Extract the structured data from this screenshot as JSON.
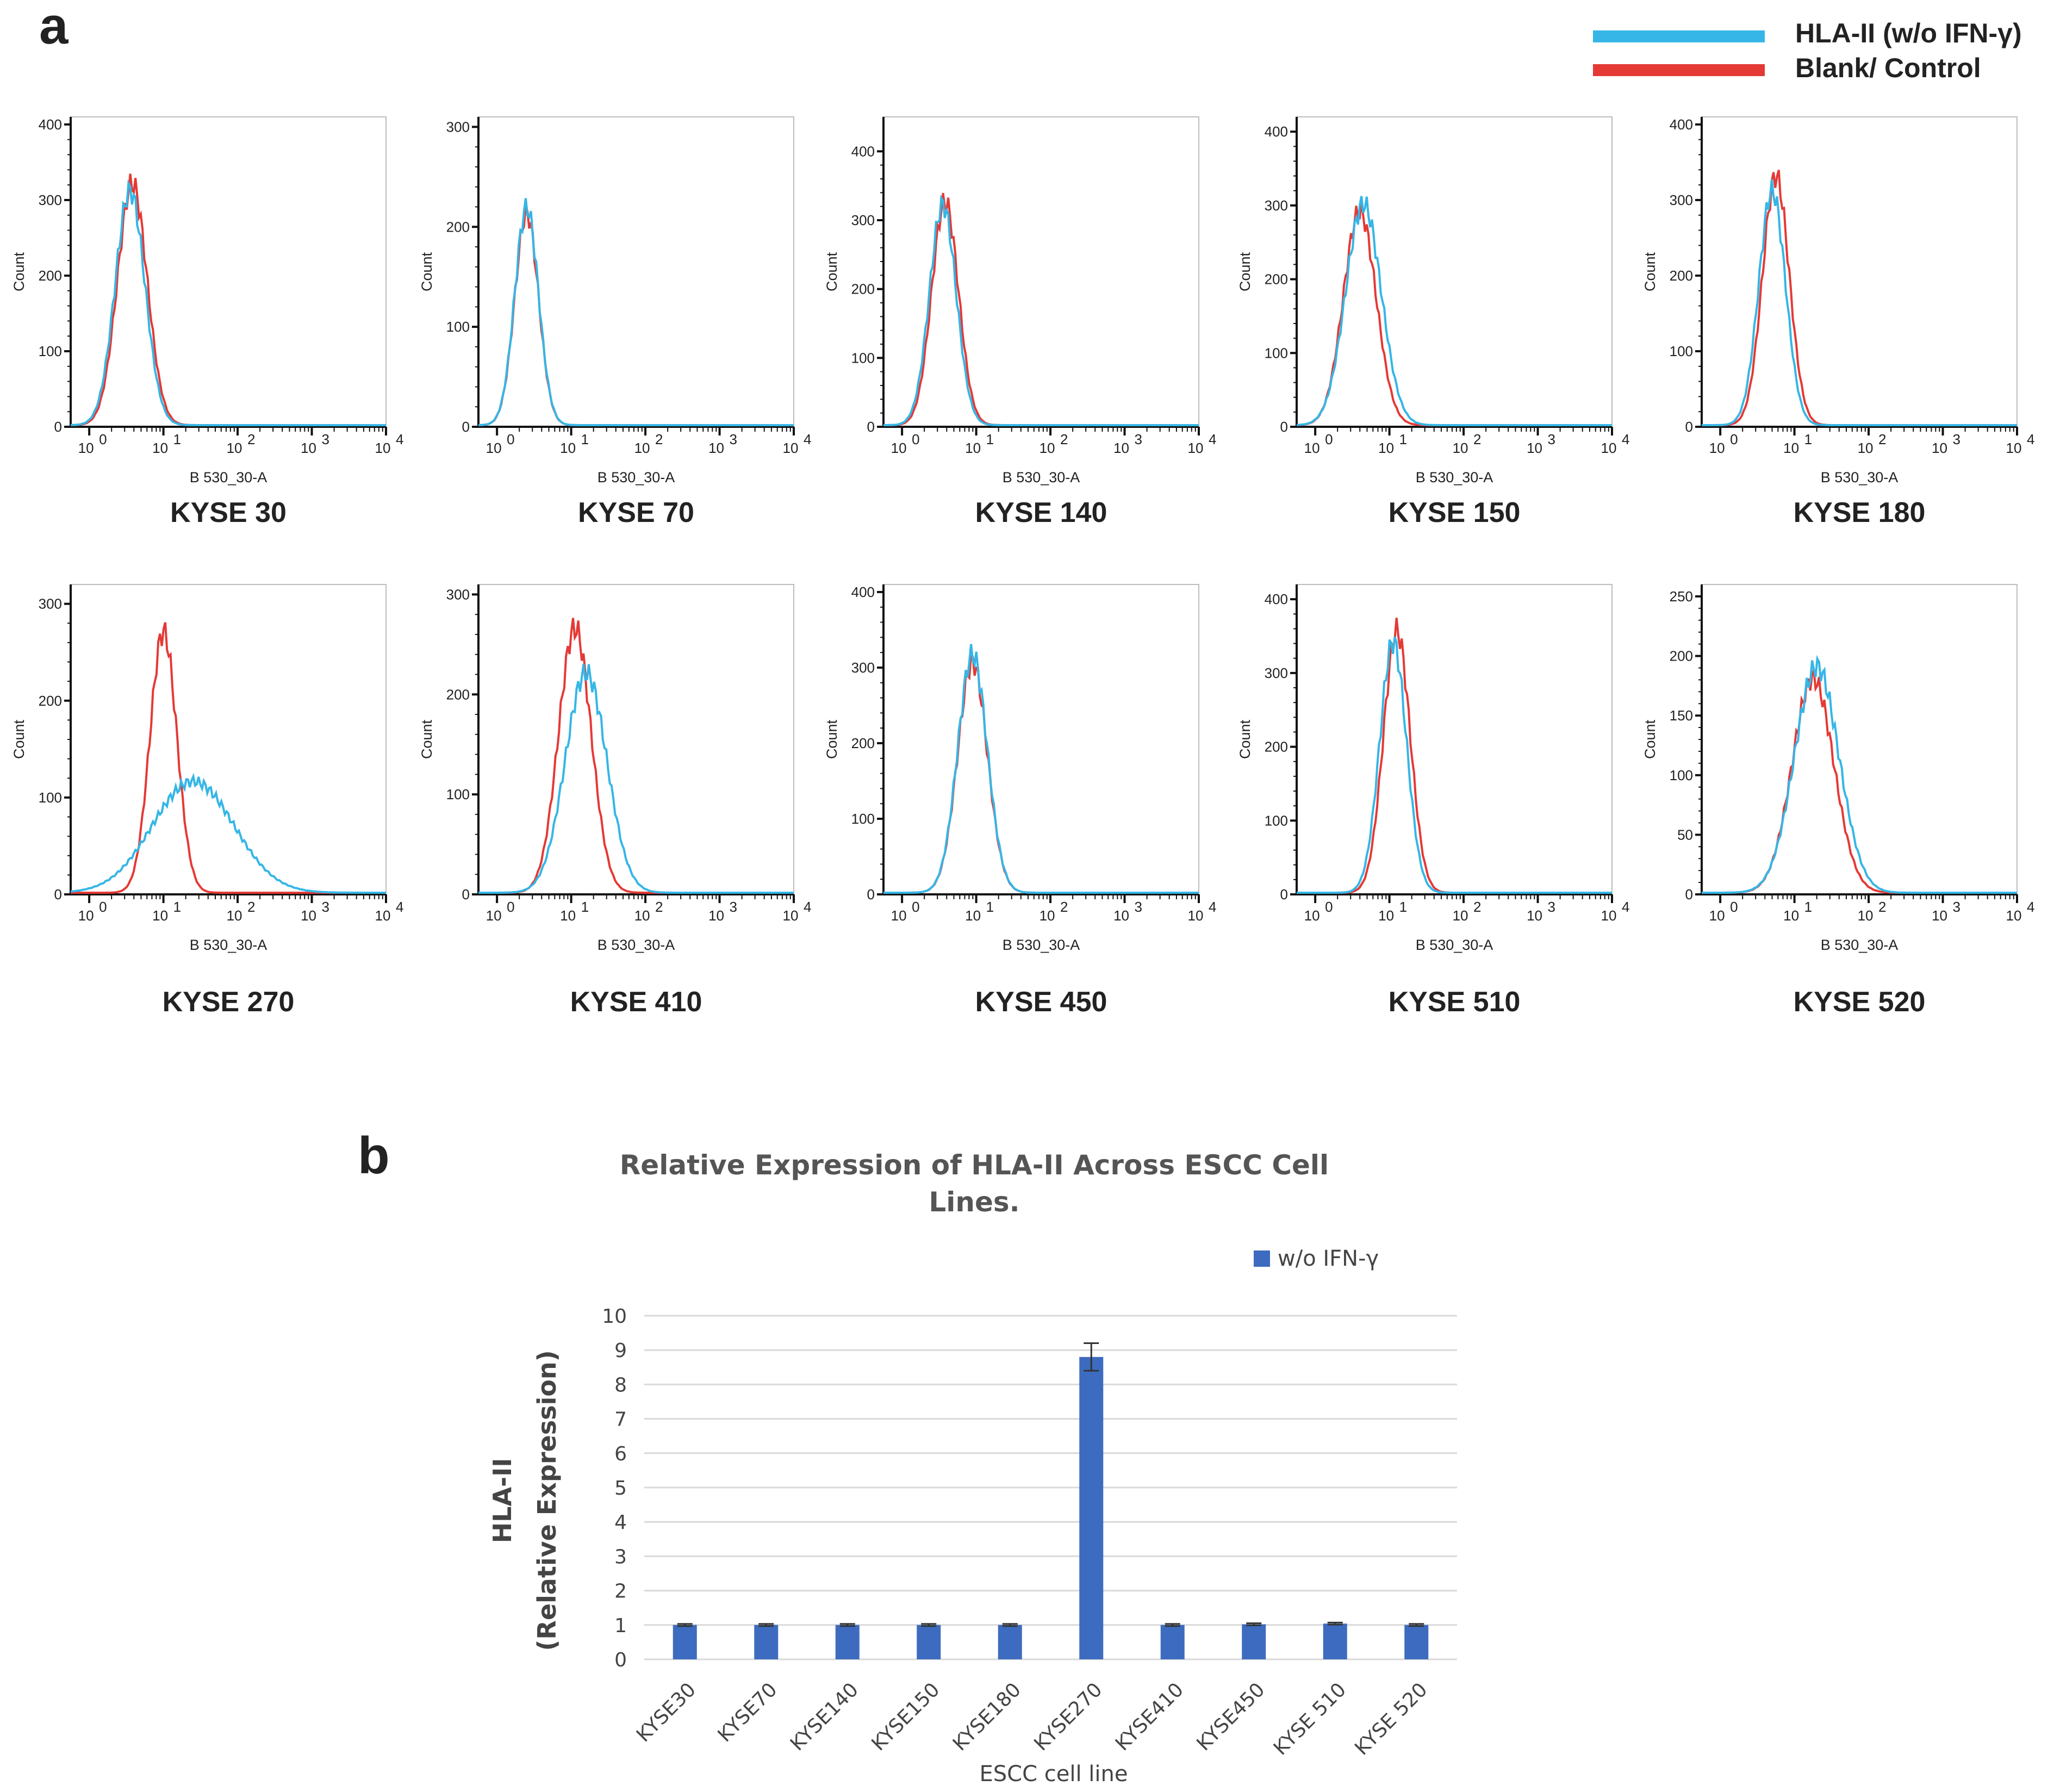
{
  "panel_a_label": "a",
  "panel_b_label": "b",
  "legend": {
    "items": [
      {
        "label": "HLA-II (w/o IFN-γ)",
        "color": "#35b6e6"
      },
      {
        "label": "Blank/ Control",
        "color": "#e53935"
      }
    ]
  },
  "chart_data": [
    {
      "type": "histogram-grid",
      "x_scale": "log",
      "xlabel": "B 530_30-A",
      "ylabel": "Count",
      "x_ticks": [
        {
          "base": "10",
          "exp": "0"
        },
        {
          "base": "10",
          "exp": "1"
        },
        {
          "base": "10",
          "exp": "2"
        },
        {
          "base": "10",
          "exp": "3"
        },
        {
          "base": "10",
          "exp": "4"
        }
      ],
      "xlim_log10": [
        -0.25,
        4
      ],
      "series_names": [
        "HLA-II (w/o IFN-γ)",
        "Blank/ Control"
      ],
      "panels": [
        {
          "title": "KYSE 30",
          "y_ticks": [
            "0",
            "100",
            "200",
            "300",
            "400"
          ],
          "ymax": 410,
          "blue": {
            "mu": 0.55,
            "sigma": 0.2,
            "peak": 310
          },
          "red": {
            "mu": 0.58,
            "sigma": 0.2,
            "peak": 320
          }
        },
        {
          "title": "KYSE 70",
          "y_ticks": [
            "0",
            "100",
            "200",
            "300"
          ],
          "ymax": 310,
          "blue": {
            "mu": 0.4,
            "sigma": 0.16,
            "peak": 218
          },
          "red": {
            "mu": 0.4,
            "sigma": 0.16,
            "peak": 212
          }
        },
        {
          "title": "KYSE 140",
          "y_ticks": [
            "0",
            "100",
            "200",
            "300",
            "400"
          ],
          "ymax": 450,
          "blue": {
            "mu": 0.55,
            "sigma": 0.18,
            "peak": 320
          },
          "red": {
            "mu": 0.58,
            "sigma": 0.18,
            "peak": 325
          }
        },
        {
          "title": "KYSE 150",
          "y_ticks": [
            "0",
            "100",
            "200",
            "300",
            "400"
          ],
          "ymax": 420,
          "blue": {
            "mu": 0.65,
            "sigma": 0.24,
            "peak": 300
          },
          "red": {
            "mu": 0.6,
            "sigma": 0.22,
            "peak": 290
          }
        },
        {
          "title": "KYSE 180",
          "y_ticks": [
            "0",
            "100",
            "200",
            "300",
            "400"
          ],
          "ymax": 410,
          "blue": {
            "mu": 0.7,
            "sigma": 0.18,
            "peak": 310
          },
          "red": {
            "mu": 0.75,
            "sigma": 0.18,
            "peak": 330
          }
        },
        {
          "title": "KYSE 270",
          "y_ticks": [
            "0",
            "100",
            "200",
            "300"
          ],
          "ymax": 320,
          "blue": {
            "mu": 1.4,
            "sigma": 0.55,
            "peak": 115
          },
          "red": {
            "mu": 1.0,
            "sigma": 0.18,
            "peak": 270
          }
        },
        {
          "title": "KYSE 410",
          "y_ticks": [
            "0",
            "100",
            "200",
            "300"
          ],
          "ymax": 310,
          "blue": {
            "mu": 1.2,
            "sigma": 0.28,
            "peak": 220
          },
          "red": {
            "mu": 1.05,
            "sigma": 0.22,
            "peak": 265
          }
        },
        {
          "title": "KYSE 450",
          "y_ticks": [
            "0",
            "100",
            "200",
            "300",
            "400"
          ],
          "ymax": 410,
          "blue": {
            "mu": 0.95,
            "sigma": 0.2,
            "peak": 315
          },
          "red": {
            "mu": 0.95,
            "sigma": 0.2,
            "peak": 305
          }
        },
        {
          "title": "KYSE 510",
          "y_ticks": [
            "0",
            "100",
            "200",
            "300",
            "400"
          ],
          "ymax": 420,
          "blue": {
            "mu": 1.05,
            "sigma": 0.18,
            "peak": 340
          },
          "red": {
            "mu": 1.1,
            "sigma": 0.18,
            "peak": 355
          }
        },
        {
          "title": "KYSE 520",
          "y_ticks": [
            "0",
            "50",
            "100",
            "150",
            "200",
            "250"
          ],
          "ymax": 260,
          "blue": {
            "mu": 1.3,
            "sigma": 0.3,
            "peak": 190
          },
          "red": {
            "mu": 1.25,
            "sigma": 0.28,
            "peak": 180
          }
        }
      ]
    },
    {
      "type": "bar",
      "title_lines": [
        "Relative Expression of HLA-II Across ESCC Cell",
        "Lines."
      ],
      "series": [
        {
          "name": "w/o IFN-γ",
          "color": "#3d6bbf",
          "values": [
            1.0,
            1.0,
            1.0,
            1.0,
            1.0,
            8.8,
            1.0,
            1.02,
            1.04,
            1.0
          ],
          "errors": [
            0.03,
            0.03,
            0.03,
            0.03,
            0.03,
            0.4,
            0.03,
            0.03,
            0.03,
            0.03
          ]
        }
      ],
      "categories": [
        "KYSE30",
        "KYSE70",
        "KYSE140",
        "KYSE150",
        "KYSE180",
        "KYSE270",
        "KYSE410",
        "KYSE450",
        "KYSE 510",
        "KYSE 520"
      ],
      "ylabel_lines": [
        "HLA-II",
        "(Relative Expression)"
      ],
      "xlabel": "ESCC cell line",
      "ylim": [
        0,
        10
      ],
      "y_ticks": [
        "0",
        "1",
        "2",
        "3",
        "4",
        "5",
        "6",
        "7",
        "8",
        "9",
        "10"
      ],
      "grid": true,
      "legend_position": "top-right"
    }
  ]
}
